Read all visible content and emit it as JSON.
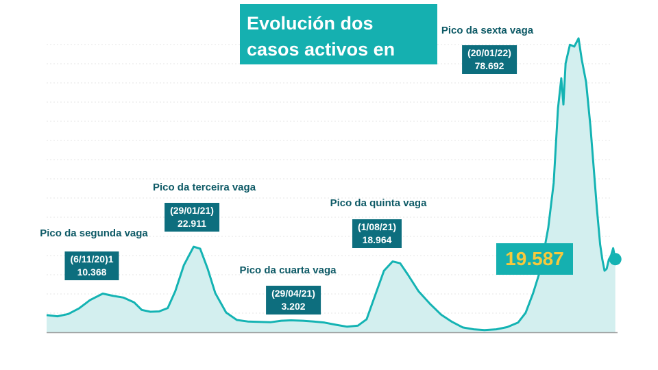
{
  "title": "Evolución dos casos activos en Galicia",
  "colors": {
    "line": "#14b3b3",
    "fill": "#d3efef",
    "title_bg": "#15b0b0",
    "box_bg": "#0d6e7e",
    "label_text": "#0e5a66",
    "highlight_text": "#f7c93c",
    "grid": "#e6e6e6",
    "axis": "#999999"
  },
  "current_value": "19.587",
  "peaks": [
    {
      "label": "Pico da segunda vaga",
      "date": "(6/11/20)1",
      "value": "10.368"
    },
    {
      "label": "Pico da terceira vaga",
      "date": "(29/01/21)",
      "value": "22.911"
    },
    {
      "label": "Pico da cuarta vaga",
      "date": "(29/04/21)",
      "value": "3.202"
    },
    {
      "label": "Pico da quinta vaga",
      "date": "(1/08/21)",
      "value": "18.964"
    },
    {
      "label": "Pico da sexta vaga",
      "date": "(20/01/22)",
      "value": "78.692"
    }
  ],
  "chart_data": {
    "type": "area",
    "title": "Evolución dos casos activos en Galicia",
    "xlabel": "",
    "ylabel": "",
    "ylim": [
      0,
      82000
    ],
    "x_range": [
      "2020-09-15",
      "2022-02-20"
    ],
    "grid": "horizontal",
    "series": [
      {
        "values": [
          [
            "2020-09-15",
            4600
          ],
          [
            "2020-09-25",
            4300
          ],
          [
            "2020-10-05",
            4900
          ],
          [
            "2020-10-15",
            6400
          ],
          [
            "2020-10-25",
            8600
          ],
          [
            "2020-11-06",
            10368
          ],
          [
            "2020-11-15",
            9800
          ],
          [
            "2020-11-25",
            9300
          ],
          [
            "2020-12-05",
            8000
          ],
          [
            "2020-12-12",
            6000
          ],
          [
            "2020-12-20",
            5500
          ],
          [
            "2020-12-28",
            5600
          ],
          [
            "2021-01-05",
            6500
          ],
          [
            "2021-01-12",
            11000
          ],
          [
            "2021-01-20",
            18000
          ],
          [
            "2021-01-29",
            22911
          ],
          [
            "2021-02-04",
            22400
          ],
          [
            "2021-02-11",
            17000
          ],
          [
            "2021-02-18",
            10500
          ],
          [
            "2021-02-28",
            5300
          ],
          [
            "2021-03-10",
            3300
          ],
          [
            "2021-03-20",
            2900
          ],
          [
            "2021-03-30",
            2800
          ],
          [
            "2021-04-10",
            2700
          ],
          [
            "2021-04-20",
            3100
          ],
          [
            "2021-04-29",
            3202
          ],
          [
            "2021-05-10",
            3100
          ],
          [
            "2021-05-20",
            2900
          ],
          [
            "2021-05-30",
            2600
          ],
          [
            "2021-06-10",
            2000
          ],
          [
            "2021-06-20",
            1500
          ],
          [
            "2021-06-30",
            1800
          ],
          [
            "2021-07-08",
            3500
          ],
          [
            "2021-07-16",
            10000
          ],
          [
            "2021-07-24",
            16500
          ],
          [
            "2021-08-01",
            18964
          ],
          [
            "2021-08-08",
            18500
          ],
          [
            "2021-08-15",
            15500
          ],
          [
            "2021-08-25",
            11000
          ],
          [
            "2021-09-05",
            7500
          ],
          [
            "2021-09-15",
            4700
          ],
          [
            "2021-09-25",
            2800
          ],
          [
            "2021-10-05",
            1300
          ],
          [
            "2021-10-15",
            800
          ],
          [
            "2021-10-25",
            600
          ],
          [
            "2021-11-05",
            800
          ],
          [
            "2021-11-15",
            1400
          ],
          [
            "2021-11-25",
            2600
          ],
          [
            "2021-12-02",
            5200
          ],
          [
            "2021-12-09",
            10500
          ],
          [
            "2021-12-16",
            17000
          ],
          [
            "2021-12-23",
            28000
          ],
          [
            "2021-12-28",
            40000
          ],
          [
            "2022-01-01",
            60000
          ],
          [
            "2022-01-04",
            68000
          ],
          [
            "2022-01-06",
            61000
          ],
          [
            "2022-01-08",
            72000
          ],
          [
            "2022-01-12",
            77000
          ],
          [
            "2022-01-16",
            76500
          ],
          [
            "2022-01-20",
            78692
          ],
          [
            "2022-01-23",
            73000
          ],
          [
            "2022-01-27",
            67000
          ],
          [
            "2022-01-31",
            55000
          ],
          [
            "2022-02-03",
            44000
          ],
          [
            "2022-02-06",
            33000
          ],
          [
            "2022-02-09",
            23500
          ],
          [
            "2022-02-11",
            19500
          ],
          [
            "2022-02-13",
            16500
          ],
          [
            "2022-02-15",
            17000
          ],
          [
            "2022-02-17",
            19500
          ],
          [
            "2022-02-19",
            20500
          ],
          [
            "2022-02-21",
            22500
          ],
          [
            "2022-02-23",
            19587
          ]
        ]
      }
    ],
    "annotations": [
      {
        "date": "2020-11-06",
        "value": 10368,
        "text": "Pico da segunda vaga"
      },
      {
        "date": "2021-01-29",
        "value": 22911,
        "text": "Pico da terceira vaga"
      },
      {
        "date": "2021-04-29",
        "value": 3202,
        "text": "Pico da cuarta vaga"
      },
      {
        "date": "2021-08-01",
        "value": 18964,
        "text": "Pico da quinta vaga"
      },
      {
        "date": "2022-01-20",
        "value": 78692,
        "text": "Pico da sexta vaga"
      },
      {
        "date": "2022-02-23",
        "value": 19587,
        "text": "19.587"
      }
    ]
  }
}
